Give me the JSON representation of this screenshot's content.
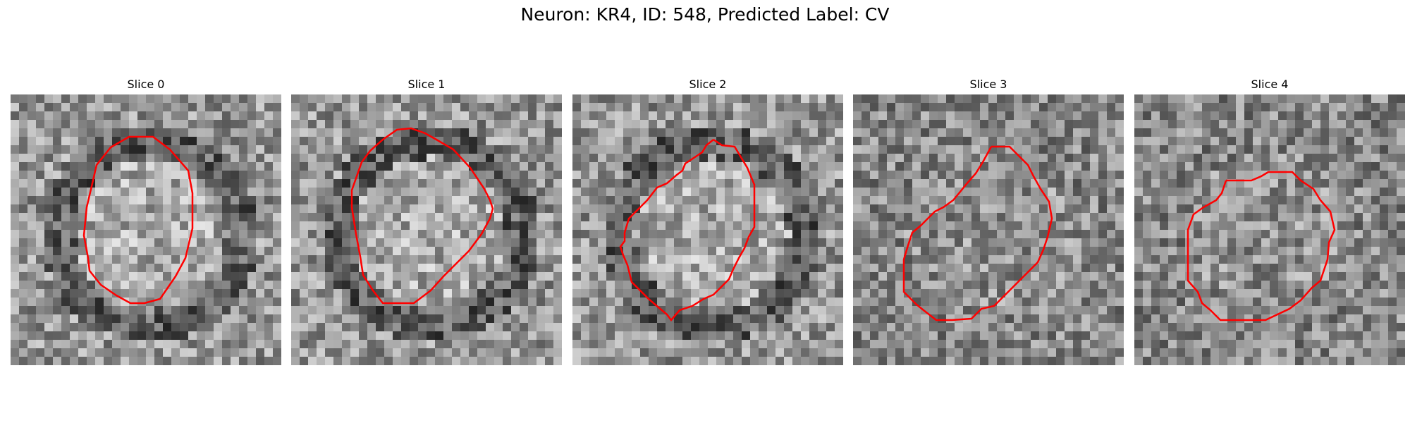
{
  "figure": {
    "title": "Neuron: KR4, ID: 548, Predicted Label: CV"
  },
  "colors": {
    "contour": "#ff0000",
    "colormap": "grayscale"
  },
  "panels": [
    {
      "title": "Slice 0",
      "seed": 11,
      "dark_ring": true,
      "contour_style": "octagon-tall"
    },
    {
      "title": "Slice 1",
      "seed": 23,
      "dark_ring": true,
      "contour_style": "octagon-large"
    },
    {
      "title": "Slice 2",
      "seed": 37,
      "dark_ring": true,
      "contour_style": "stepped-diagonal"
    },
    {
      "title": "Slice 3",
      "seed": 53,
      "dark_ring": false,
      "contour_style": "stepped-diagonal-wide"
    },
    {
      "title": "Slice 4",
      "seed": 71,
      "dark_ring": false,
      "contour_style": "octagon-wide"
    }
  ]
}
